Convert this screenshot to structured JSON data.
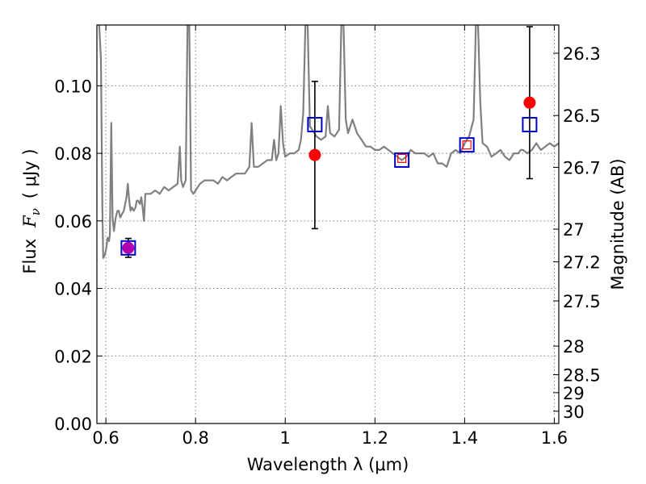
{
  "chart_data": {
    "type": "line",
    "xlabel": "Wavelength  λ (μm)",
    "ylabel_left": {
      "text": "Flux",
      "symbol": "F",
      "symbol_sub": "ν",
      "units": "( μJy )"
    },
    "ylabel_right": "Magnitude (AB)",
    "xlim": [
      0.58,
      1.61
    ],
    "ylim": [
      0.0,
      0.118
    ],
    "grid": true,
    "x_ticks": [
      {
        "value": 0.6,
        "label": "0.6"
      },
      {
        "value": 0.8,
        "label": "0.8"
      },
      {
        "value": 1.0,
        "label": "1"
      },
      {
        "value": 1.2,
        "label": "1.2"
      },
      {
        "value": 1.4,
        "label": "1.4"
      },
      {
        "value": 1.6,
        "label": "1.6"
      }
    ],
    "y_ticks": [
      {
        "value": 0.0,
        "label": "0.00"
      },
      {
        "value": 0.02,
        "label": "0.02"
      },
      {
        "value": 0.04,
        "label": "0.04"
      },
      {
        "value": 0.06,
        "label": "0.06"
      },
      {
        "value": 0.08,
        "label": "0.08"
      },
      {
        "value": 0.1,
        "label": "0.10"
      }
    ],
    "mag_ticks": [
      {
        "value": 26.3,
        "label": "26.3"
      },
      {
        "value": 26.5,
        "label": "26.5"
      },
      {
        "value": 26.7,
        "label": "26.7"
      },
      {
        "value": 27.0,
        "label": "27"
      },
      {
        "value": 27.2,
        "label": "27.2"
      },
      {
        "value": 27.5,
        "label": "27.5"
      },
      {
        "value": 28.0,
        "label": "28"
      },
      {
        "value": 28.5,
        "label": "28.5"
      },
      {
        "value": 29.0,
        "label": "29"
      },
      {
        "value": 30.0,
        "label": "30"
      }
    ],
    "series": [
      {
        "kind": "spectrum",
        "color": "#808080",
        "points": [
          [
            0.585,
            0.118
          ],
          [
            0.589,
            0.108
          ],
          [
            0.592,
            0.065
          ],
          [
            0.594,
            0.049
          ],
          [
            0.598,
            0.05
          ],
          [
            0.601,
            0.052
          ],
          [
            0.604,
            0.055
          ],
          [
            0.607,
            0.054
          ],
          [
            0.609,
            0.056
          ],
          [
            0.612,
            0.089
          ],
          [
            0.615,
            0.061
          ],
          [
            0.618,
            0.057
          ],
          [
            0.622,
            0.061
          ],
          [
            0.626,
            0.063
          ],
          [
            0.629,
            0.063
          ],
          [
            0.632,
            0.061
          ],
          [
            0.636,
            0.062
          ],
          [
            0.64,
            0.063
          ],
          [
            0.643,
            0.065
          ],
          [
            0.646,
            0.067
          ],
          [
            0.649,
            0.071
          ],
          [
            0.652,
            0.066
          ],
          [
            0.655,
            0.063
          ],
          [
            0.658,
            0.064
          ],
          [
            0.662,
            0.063
          ],
          [
            0.666,
            0.064
          ],
          [
            0.669,
            0.066
          ],
          [
            0.672,
            0.066
          ],
          [
            0.676,
            0.065
          ],
          [
            0.679,
            0.067
          ],
          [
            0.682,
            0.064
          ],
          [
            0.685,
            0.06
          ],
          [
            0.688,
            0.068
          ],
          [
            0.692,
            0.068
          ],
          [
            0.7,
            0.068
          ],
          [
            0.71,
            0.069
          ],
          [
            0.72,
            0.068
          ],
          [
            0.73,
            0.07
          ],
          [
            0.74,
            0.069
          ],
          [
            0.75,
            0.07
          ],
          [
            0.76,
            0.071
          ],
          [
            0.765,
            0.082
          ],
          [
            0.768,
            0.072
          ],
          [
            0.772,
            0.07
          ],
          [
            0.778,
            0.072
          ],
          [
            0.782,
            0.118
          ],
          [
            0.786,
            0.118
          ],
          [
            0.79,
            0.069
          ],
          [
            0.795,
            0.068
          ],
          [
            0.8,
            0.069
          ],
          [
            0.81,
            0.071
          ],
          [
            0.82,
            0.072
          ],
          [
            0.83,
            0.072
          ],
          [
            0.84,
            0.072
          ],
          [
            0.85,
            0.071
          ],
          [
            0.86,
            0.073
          ],
          [
            0.87,
            0.072
          ],
          [
            0.88,
            0.073
          ],
          [
            0.89,
            0.074
          ],
          [
            0.9,
            0.074
          ],
          [
            0.91,
            0.074
          ],
          [
            0.92,
            0.076
          ],
          [
            0.925,
            0.089
          ],
          [
            0.93,
            0.076
          ],
          [
            0.94,
            0.076
          ],
          [
            0.95,
            0.077
          ],
          [
            0.96,
            0.078
          ],
          [
            0.97,
            0.078
          ],
          [
            0.975,
            0.084
          ],
          [
            0.98,
            0.078
          ],
          [
            0.985,
            0.08
          ],
          [
            0.99,
            0.094
          ],
          [
            0.995,
            0.083
          ],
          [
            1.0,
            0.079
          ],
          [
            1.01,
            0.08
          ],
          [
            1.02,
            0.08
          ],
          [
            1.03,
            0.081
          ],
          [
            1.035,
            0.084
          ],
          [
            1.04,
            0.092
          ],
          [
            1.045,
            0.118
          ],
          [
            1.05,
            0.118
          ],
          [
            1.055,
            0.088
          ],
          [
            1.06,
            0.087
          ],
          [
            1.07,
            0.085
          ],
          [
            1.08,
            0.084
          ],
          [
            1.09,
            0.085
          ],
          [
            1.095,
            0.094
          ],
          [
            1.1,
            0.086
          ],
          [
            1.11,
            0.085
          ],
          [
            1.12,
            0.087
          ],
          [
            1.125,
            0.118
          ],
          [
            1.13,
            0.118
          ],
          [
            1.135,
            0.09
          ],
          [
            1.14,
            0.086
          ],
          [
            1.15,
            0.09
          ],
          [
            1.16,
            0.086
          ],
          [
            1.17,
            0.084
          ],
          [
            1.18,
            0.082
          ],
          [
            1.19,
            0.082
          ],
          [
            1.2,
            0.081
          ],
          [
            1.21,
            0.081
          ],
          [
            1.22,
            0.082
          ],
          [
            1.23,
            0.081
          ],
          [
            1.24,
            0.08
          ],
          [
            1.25,
            0.079
          ],
          [
            1.26,
            0.078
          ],
          [
            1.27,
            0.079
          ],
          [
            1.28,
            0.081
          ],
          [
            1.29,
            0.08
          ],
          [
            1.3,
            0.08
          ],
          [
            1.31,
            0.08
          ],
          [
            1.32,
            0.079
          ],
          [
            1.33,
            0.08
          ],
          [
            1.34,
            0.077
          ],
          [
            1.35,
            0.077
          ],
          [
            1.36,
            0.076
          ],
          [
            1.37,
            0.08
          ],
          [
            1.38,
            0.081
          ],
          [
            1.39,
            0.08
          ],
          [
            1.4,
            0.083
          ],
          [
            1.41,
            0.085
          ],
          [
            1.42,
            0.09
          ],
          [
            1.425,
            0.118
          ],
          [
            1.43,
            0.118
          ],
          [
            1.435,
            0.095
          ],
          [
            1.44,
            0.083
          ],
          [
            1.45,
            0.082
          ],
          [
            1.46,
            0.079
          ],
          [
            1.47,
            0.08
          ],
          [
            1.48,
            0.081
          ],
          [
            1.49,
            0.079
          ],
          [
            1.5,
            0.078
          ],
          [
            1.51,
            0.08
          ],
          [
            1.52,
            0.08
          ],
          [
            1.525,
            0.081
          ],
          [
            1.53,
            0.081
          ],
          [
            1.54,
            0.08
          ],
          [
            1.55,
            0.081
          ],
          [
            1.56,
            0.083
          ],
          [
            1.565,
            0.082
          ],
          [
            1.57,
            0.081
          ],
          [
            1.58,
            0.082
          ],
          [
            1.59,
            0.083
          ],
          [
            1.6,
            0.082
          ],
          [
            1.61,
            0.083
          ]
        ]
      },
      {
        "kind": "observed",
        "marker": "circle",
        "color": "#ff0000",
        "points": [
          {
            "x": 0.65,
            "y": 0.052,
            "yerr": 0.0028
          },
          {
            "x": 1.066,
            "y": 0.0795,
            "yerr": 0.0218
          },
          {
            "x": 1.26,
            "y": 0.0785,
            "yerr": 0.0
          },
          {
            "x": 1.405,
            "y": 0.0825,
            "yerr": 0.0
          },
          {
            "x": 1.545,
            "y": 0.095,
            "yerr": 0.0225
          }
        ]
      },
      {
        "kind": "model",
        "marker": "square",
        "color": "#0000cc",
        "points": [
          {
            "x": 0.65,
            "y": 0.052
          },
          {
            "x": 1.066,
            "y": 0.0885
          },
          {
            "x": 1.26,
            "y": 0.078
          },
          {
            "x": 1.405,
            "y": 0.0825
          },
          {
            "x": 1.545,
            "y": 0.0885
          }
        ]
      }
    ],
    "colors": {
      "axes": "#000000",
      "grid": "#808080",
      "overlap": "#b000b0"
    }
  }
}
